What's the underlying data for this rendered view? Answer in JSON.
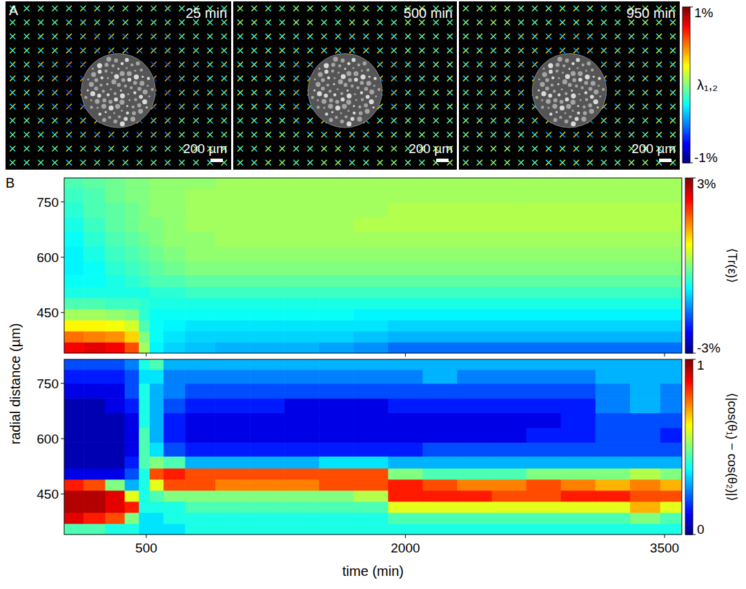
{
  "chart_data": [
    {
      "type": "strain_field",
      "label": "A",
      "colorbar": {
        "title": "λ₁,₂",
        "range": [
          -1,
          1
        ],
        "ticks": [
          {
            "value": 1,
            "label": "1%"
          },
          {
            "value": -1,
            "label": "-1%"
          }
        ]
      },
      "images": [
        {
          "time_label": "25 min",
          "scale_bar": "200 µm",
          "lambda1": [
            [
              0.1,
              0.1,
              0.2,
              0.2,
              0.2,
              0.2,
              0.1,
              0.1
            ],
            [
              0.1,
              0.2,
              0.3,
              0.3,
              0.3,
              0.3,
              0.2,
              0.1
            ],
            [
              0.2,
              0.3,
              0.4,
              0.0,
              0.0,
              0.4,
              0.3,
              0.2
            ],
            [
              0.2,
              0.3,
              0.4,
              0.0,
              0.0,
              0.4,
              0.3,
              0.2
            ],
            [
              0.1,
              0.2,
              0.3,
              0.3,
              0.3,
              0.3,
              0.2,
              0.1
            ],
            [
              0.1,
              0.1,
              0.2,
              0.2,
              0.2,
              0.2,
              0.1,
              0.1
            ]
          ],
          "lambda2": [
            [
              -0.2,
              -0.2,
              -0.3,
              -0.3,
              -0.3,
              -0.3,
              -0.2,
              -0.2
            ],
            [
              -0.2,
              -0.3,
              -0.4,
              -0.5,
              -0.5,
              -0.4,
              -0.3,
              -0.2
            ],
            [
              -0.3,
              -0.4,
              -0.6,
              -0.7,
              -0.7,
              -0.6,
              -0.4,
              -0.3
            ],
            [
              -0.3,
              -0.4,
              -0.6,
              -0.7,
              -0.7,
              -0.6,
              -0.4,
              -0.3
            ],
            [
              -0.2,
              -0.3,
              -0.4,
              -0.5,
              -0.5,
              -0.4,
              -0.3,
              -0.2
            ],
            [
              -0.2,
              -0.2,
              -0.3,
              -0.3,
              -0.3,
              -0.3,
              -0.2,
              -0.2
            ]
          ]
        },
        {
          "time_label": "500 min",
          "scale_bar": "200 µm",
          "lambda1": [
            [
              0.2,
              0.1,
              0.2,
              0.1,
              0.2,
              0.1,
              0.2,
              0.1
            ],
            [
              0.1,
              0.2,
              0.2,
              0.3,
              0.3,
              0.2,
              0.2,
              0.1
            ],
            [
              0.2,
              0.2,
              0.3,
              0.2,
              0.2,
              0.3,
              0.2,
              0.2
            ],
            [
              0.2,
              0.2,
              0.3,
              0.2,
              0.2,
              0.3,
              0.2,
              0.2
            ],
            [
              0.1,
              0.2,
              0.2,
              0.3,
              0.3,
              0.2,
              0.2,
              0.1
            ],
            [
              0.1,
              0.2,
              0.1,
              0.2,
              0.1,
              0.2,
              0.1,
              0.2
            ]
          ],
          "lambda2": [
            [
              -0.1,
              -0.2,
              -0.1,
              -0.2,
              -0.1,
              -0.2,
              -0.1,
              -0.2
            ],
            [
              -0.2,
              -0.2,
              -0.3,
              -0.3,
              -0.3,
              -0.3,
              -0.2,
              -0.2
            ],
            [
              -0.2,
              -0.3,
              -0.4,
              -0.5,
              -0.5,
              -0.4,
              -0.3,
              -0.2
            ],
            [
              -0.2,
              -0.3,
              -0.4,
              -0.5,
              -0.5,
              -0.4,
              -0.3,
              -0.2
            ],
            [
              -0.2,
              -0.2,
              -0.3,
              -0.3,
              -0.3,
              -0.3,
              -0.2,
              -0.2
            ],
            [
              -0.2,
              -0.1,
              -0.2,
              -0.1,
              -0.2,
              -0.1,
              -0.2,
              -0.1
            ]
          ]
        },
        {
          "time_label": "950 min",
          "scale_bar": "200 µm",
          "lambda1": [
            [
              0.2,
              0.2,
              0.1,
              0.2,
              0.2,
              0.1,
              0.2,
              0.2
            ],
            [
              0.2,
              0.2,
              0.3,
              0.3,
              0.3,
              0.3,
              0.2,
              0.2
            ],
            [
              0.2,
              0.3,
              0.3,
              0.3,
              0.3,
              0.3,
              0.3,
              0.2
            ],
            [
              0.2,
              0.3,
              0.3,
              0.3,
              0.3,
              0.3,
              0.3,
              0.2
            ],
            [
              0.2,
              0.2,
              0.3,
              0.3,
              0.3,
              0.3,
              0.2,
              0.2
            ],
            [
              0.2,
              0.2,
              0.1,
              0.2,
              0.2,
              0.1,
              0.2,
              0.2
            ]
          ],
          "lambda2": [
            [
              -0.2,
              -0.1,
              -0.2,
              -0.2,
              -0.2,
              -0.2,
              -0.1,
              -0.2
            ],
            [
              -0.2,
              -0.3,
              -0.3,
              -0.4,
              -0.4,
              -0.3,
              -0.3,
              -0.2
            ],
            [
              -0.3,
              -0.3,
              -0.4,
              -0.5,
              -0.5,
              -0.4,
              -0.3,
              -0.3
            ],
            [
              -0.3,
              -0.3,
              -0.4,
              -0.5,
              -0.5,
              -0.4,
              -0.3,
              -0.3
            ],
            [
              -0.2,
              -0.3,
              -0.3,
              -0.4,
              -0.4,
              -0.3,
              -0.3,
              -0.2
            ],
            [
              -0.2,
              -0.1,
              -0.2,
              -0.2,
              -0.2,
              -0.2,
              -0.1,
              -0.2
            ]
          ]
        }
      ]
    },
    {
      "type": "heatmap",
      "label": "B",
      "ylabel": "radial distance (µm)",
      "tick_labels": "y",
      "x": [
        75,
        200,
        325,
        425,
        490,
        550,
        650,
        800,
        1000,
        1200,
        1400,
        1600,
        1800,
        2000,
        2200,
        2400,
        2600,
        2800,
        3000,
        3200,
        3400,
        3550
      ],
      "y": [
        355,
        385,
        415,
        445,
        475,
        505,
        535,
        570,
        610,
        650,
        690,
        730,
        770,
        805
      ],
      "xlim": [
        25,
        3600
      ],
      "ylim": [
        340,
        815
      ],
      "xticks": [
        500,
        2000,
        3500
      ],
      "yticks": [
        450,
        600,
        750
      ],
      "colorbar": {
        "title": "⟨Tr(ε)⟩",
        "range": [
          -3,
          3
        ],
        "ticks": [
          {
            "value": 3,
            "label": "3%"
          },
          {
            "value": -3,
            "label": "-3%"
          }
        ]
      },
      "z": [
        [
          2.3,
          2.4,
          2.3,
          1.8,
          0.2,
          -0.8,
          -1.0,
          -1.1,
          -1.2,
          -1.2,
          -1.2,
          -1.3,
          -1.4,
          -1.6,
          -1.6,
          -1.6,
          -1.6,
          -1.6,
          -1.6,
          -1.6,
          -1.6,
          -1.6
        ],
        [
          1.6,
          1.5,
          1.4,
          1.0,
          0.0,
          -0.7,
          -0.9,
          -1.0,
          -1.0,
          -1.0,
          -1.0,
          -1.0,
          -1.1,
          -1.2,
          -1.2,
          -1.2,
          -1.2,
          -1.2,
          -1.2,
          -1.2,
          -1.2,
          -1.2
        ],
        [
          0.8,
          0.8,
          0.7,
          0.5,
          -0.3,
          -0.7,
          -0.8,
          -0.9,
          -0.9,
          -0.9,
          -0.9,
          -0.9,
          -0.9,
          -1.0,
          -1.0,
          -1.0,
          -1.0,
          -1.0,
          -1.0,
          -1.0,
          -1.0,
          -1.0
        ],
        [
          0.2,
          0.2,
          0.1,
          0.0,
          -0.5,
          -0.7,
          -0.7,
          -0.7,
          -0.7,
          -0.7,
          -0.7,
          -0.7,
          -0.8,
          -0.8,
          -0.8,
          -0.8,
          -0.8,
          -0.8,
          -0.8,
          -0.8,
          -0.8,
          -0.8
        ],
        [
          -0.3,
          -0.3,
          -0.4,
          -0.4,
          -0.5,
          -0.6,
          -0.6,
          -0.6,
          -0.6,
          -0.6,
          -0.6,
          -0.6,
          -0.6,
          -0.6,
          -0.6,
          -0.6,
          -0.6,
          -0.6,
          -0.6,
          -0.6,
          -0.6,
          -0.6
        ],
        [
          -0.6,
          -0.6,
          -0.6,
          -0.6,
          -0.6,
          -0.5,
          -0.5,
          -0.4,
          -0.4,
          -0.4,
          -0.4,
          -0.4,
          -0.4,
          -0.4,
          -0.4,
          -0.4,
          -0.4,
          -0.4,
          -0.4,
          -0.4,
          -0.4,
          -0.4
        ],
        [
          -0.7,
          -0.7,
          -0.6,
          -0.5,
          -0.4,
          -0.3,
          -0.3,
          -0.2,
          -0.2,
          -0.2,
          -0.2,
          -0.2,
          -0.2,
          -0.2,
          -0.2,
          -0.2,
          -0.2,
          -0.2,
          -0.2,
          -0.2,
          -0.2,
          -0.2
        ],
        [
          -0.8,
          -0.7,
          -0.5,
          -0.4,
          -0.3,
          -0.2,
          -0.1,
          0,
          0,
          0,
          0,
          0,
          0,
          0,
          0,
          0,
          0,
          0,
          0,
          0,
          0,
          0
        ],
        [
          -0.8,
          -0.6,
          -0.4,
          -0.3,
          -0.2,
          -0.1,
          0,
          0.1,
          0.1,
          0.1,
          0.1,
          0.1,
          0.1,
          0.1,
          0.1,
          0.1,
          0.1,
          0.1,
          0.1,
          0.1,
          0.1,
          0.1
        ],
        [
          -0.7,
          -0.5,
          -0.3,
          -0.2,
          -0.1,
          0,
          0.1,
          0.1,
          0.2,
          0.2,
          0.2,
          0.2,
          0.2,
          0.2,
          0.2,
          0.2,
          0.2,
          0.2,
          0.2,
          0.2,
          0.2,
          0.2
        ],
        [
          -0.6,
          -0.4,
          -0.2,
          -0.1,
          0,
          0,
          0.1,
          0.2,
          0.2,
          0.2,
          0.2,
          0.2,
          0.3,
          0.3,
          0.3,
          0.3,
          0.3,
          0.3,
          0.3,
          0.3,
          0.3,
          0.3
        ],
        [
          -0.5,
          -0.3,
          -0.2,
          -0.1,
          0,
          0.1,
          0.1,
          0.2,
          0.2,
          0.2,
          0.2,
          0.2,
          0.2,
          0.3,
          0.3,
          0.3,
          0.3,
          0.3,
          0.3,
          0.3,
          0.3,
          0.3
        ],
        [
          -0.4,
          -0.3,
          -0.1,
          0,
          0,
          0.1,
          0.1,
          0.2,
          0.2,
          0.2,
          0.2,
          0.2,
          0.2,
          0.2,
          0.2,
          0.2,
          0.2,
          0.2,
          0.2,
          0.2,
          0.2,
          0.2
        ],
        [
          -0.3,
          -0.2,
          -0.1,
          0,
          0,
          0.1,
          0.1,
          0.1,
          0.2,
          0.2,
          0.2,
          0.2,
          0.2,
          0.2,
          0.2,
          0.2,
          0.2,
          0.2,
          0.2,
          0.2,
          0.2,
          0.2
        ]
      ]
    },
    {
      "type": "heatmap",
      "xlabel": "time (min)",
      "x": [
        75,
        200,
        325,
        425,
        490,
        550,
        650,
        800,
        1000,
        1200,
        1400,
        1600,
        1800,
        2000,
        2200,
        2400,
        2600,
        2800,
        3000,
        3200,
        3400,
        3550
      ],
      "y": [
        355,
        385,
        415,
        445,
        475,
        505,
        535,
        570,
        610,
        650,
        690,
        730,
        770,
        805
      ],
      "xlim": [
        25,
        3600
      ],
      "ylim": [
        340,
        815
      ],
      "xticks": [
        500,
        2000,
        3500
      ],
      "yticks": [
        450,
        600,
        750
      ],
      "colorbar": {
        "title": "⟨|cos(θ₁) − cos(θ₂)|⟩",
        "range": [
          0,
          1
        ],
        "ticks": [
          1,
          0
        ]
      },
      "z": [
        [
          0.45,
          0.45,
          0.4,
          0.4,
          0.35,
          0.35,
          0.35,
          0.4,
          0.4,
          0.4,
          0.4,
          0.4,
          0.4,
          0.4,
          0.4,
          0.4,
          0.4,
          0.4,
          0.4,
          0.4,
          0.4,
          0.4
        ],
        [
          0.9,
          0.85,
          0.8,
          0.5,
          0.35,
          0.35,
          0.4,
          0.4,
          0.4,
          0.4,
          0.4,
          0.4,
          0.4,
          0.45,
          0.45,
          0.45,
          0.45,
          0.45,
          0.45,
          0.45,
          0.5,
          0.45
        ],
        [
          0.95,
          0.95,
          0.9,
          0.85,
          0.4,
          0.4,
          0.4,
          0.45,
          0.45,
          0.45,
          0.45,
          0.45,
          0.45,
          0.6,
          0.6,
          0.6,
          0.6,
          0.6,
          0.6,
          0.6,
          0.7,
          0.6
        ],
        [
          0.95,
          0.95,
          0.9,
          0.6,
          0.4,
          0.45,
          0.5,
          0.5,
          0.5,
          0.5,
          0.5,
          0.5,
          0.55,
          0.85,
          0.85,
          0.85,
          0.8,
          0.8,
          0.85,
          0.85,
          0.8,
          0.8
        ],
        [
          0.85,
          0.8,
          0.5,
          0.3,
          0.4,
          0.6,
          0.8,
          0.8,
          0.75,
          0.75,
          0.75,
          0.8,
          0.8,
          0.85,
          0.8,
          0.75,
          0.75,
          0.8,
          0.75,
          0.7,
          0.75,
          0.7
        ],
        [
          0.1,
          0.1,
          0.1,
          0.2,
          0.4,
          0.8,
          0.85,
          0.8,
          0.8,
          0.8,
          0.8,
          0.8,
          0.8,
          0.5,
          0.45,
          0.45,
          0.45,
          0.5,
          0.5,
          0.5,
          0.55,
          0.5
        ],
        [
          0.05,
          0.05,
          0.05,
          0.15,
          0.45,
          0.5,
          0.45,
          0.3,
          0.3,
          0.3,
          0.3,
          0.35,
          0.35,
          0.3,
          0.3,
          0.3,
          0.3,
          0.3,
          0.3,
          0.3,
          0.3,
          0.3
        ],
        [
          0.05,
          0.05,
          0.05,
          0.1,
          0.45,
          0.35,
          0.2,
          0.15,
          0.15,
          0.15,
          0.15,
          0.15,
          0.15,
          0.15,
          0.2,
          0.2,
          0.2,
          0.2,
          0.2,
          0.2,
          0.2,
          0.2
        ],
        [
          0.05,
          0.05,
          0.05,
          0.1,
          0.45,
          0.3,
          0.15,
          0.1,
          0.1,
          0.1,
          0.1,
          0.1,
          0.1,
          0.1,
          0.1,
          0.1,
          0.1,
          0.15,
          0.15,
          0.2,
          0.2,
          0.15
        ],
        [
          0.05,
          0.05,
          0.05,
          0.1,
          0.4,
          0.3,
          0.15,
          0.1,
          0.1,
          0.1,
          0.1,
          0.1,
          0.1,
          0.1,
          0.1,
          0.1,
          0.1,
          0.1,
          0.15,
          0.2,
          0.2,
          0.2
        ],
        [
          0.05,
          0.05,
          0.1,
          0.15,
          0.4,
          0.3,
          0.2,
          0.15,
          0.15,
          0.15,
          0.1,
          0.1,
          0.1,
          0.15,
          0.15,
          0.15,
          0.15,
          0.15,
          0.15,
          0.25,
          0.3,
          0.25
        ],
        [
          0.1,
          0.1,
          0.1,
          0.2,
          0.4,
          0.3,
          0.25,
          0.2,
          0.2,
          0.2,
          0.2,
          0.2,
          0.2,
          0.2,
          0.2,
          0.2,
          0.2,
          0.2,
          0.2,
          0.25,
          0.3,
          0.25
        ],
        [
          0.15,
          0.15,
          0.15,
          0.2,
          0.35,
          0.35,
          0.25,
          0.25,
          0.25,
          0.25,
          0.25,
          0.25,
          0.25,
          0.25,
          0.3,
          0.25,
          0.25,
          0.25,
          0.25,
          0.3,
          0.3,
          0.3
        ],
        [
          0.2,
          0.2,
          0.2,
          0.25,
          0.4,
          0.45,
          0.3,
          0.3,
          0.3,
          0.3,
          0.3,
          0.3,
          0.3,
          0.3,
          0.3,
          0.3,
          0.3,
          0.3,
          0.3,
          0.3,
          0.3,
          0.3
        ]
      ]
    }
  ]
}
